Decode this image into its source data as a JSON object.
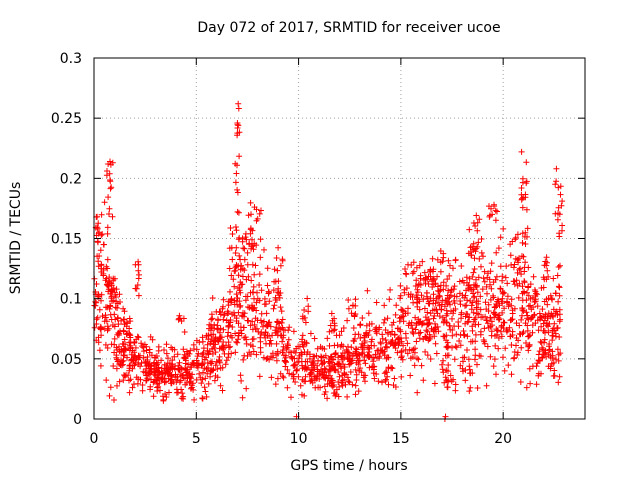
{
  "chart_data": {
    "type": "scatter",
    "title": "Day 072 of 2017, SRMTID for receiver ucoe",
    "xlabel": "GPS time / hours",
    "ylabel": "SRMTID / TECUs",
    "xlim": [
      0,
      24
    ],
    "ylim": [
      0,
      0.3
    ],
    "xticks": [
      0,
      5,
      10,
      15,
      20
    ],
    "xtick_labels": [
      "0",
      "5",
      "10",
      "15",
      "20"
    ],
    "yticks": [
      0,
      0.05,
      0.1,
      0.15,
      0.2,
      0.25,
      0.3
    ],
    "ytick_labels": [
      "0",
      "0.05",
      "0.1",
      "0.15",
      "0.2",
      "0.25",
      "0.3"
    ],
    "grid": true,
    "marker": "+",
    "marker_color": "#ff0000",
    "seed": 72,
    "baseline_profile": [
      [
        0.0,
        0.1
      ],
      [
        0.5,
        0.095
      ],
      [
        1.0,
        0.075
      ],
      [
        1.5,
        0.06
      ],
      [
        2.0,
        0.05
      ],
      [
        3.0,
        0.04
      ],
      [
        4.0,
        0.038
      ],
      [
        5.0,
        0.042
      ],
      [
        6.0,
        0.055
      ],
      [
        6.5,
        0.07
      ],
      [
        7.0,
        0.085
      ],
      [
        7.5,
        0.09
      ],
      [
        8.0,
        0.085
      ],
      [
        8.5,
        0.075
      ],
      [
        9.0,
        0.065
      ],
      [
        9.5,
        0.055
      ],
      [
        10.0,
        0.045
      ],
      [
        11.0,
        0.04
      ],
      [
        12.0,
        0.045
      ],
      [
        13.0,
        0.055
      ],
      [
        14.0,
        0.055
      ],
      [
        15.0,
        0.07
      ],
      [
        16.0,
        0.085
      ],
      [
        17.0,
        0.09
      ],
      [
        18.0,
        0.085
      ],
      [
        19.0,
        0.09
      ],
      [
        20.0,
        0.09
      ],
      [
        21.0,
        0.09
      ],
      [
        22.0,
        0.07
      ],
      [
        22.8,
        0.08
      ]
    ],
    "bursts": [
      {
        "x": [
          0.0,
          0.45
        ],
        "y": [
          0.14,
          0.17
        ],
        "n": 14
      },
      {
        "x": [
          0.35,
          0.75
        ],
        "y": [
          0.11,
          0.13
        ],
        "n": 12
      },
      {
        "x": [
          0.6,
          0.95
        ],
        "y": [
          0.15,
          0.215
        ],
        "n": 16
      },
      {
        "x": [
          0.8,
          1.05
        ],
        "y": [
          0.095,
          0.12
        ],
        "n": 8
      },
      {
        "x": [
          2.0,
          2.25
        ],
        "y": [
          0.1,
          0.135
        ],
        "n": 10
      },
      {
        "x": [
          4.1,
          4.4
        ],
        "y": [
          0.065,
          0.09
        ],
        "n": 6
      },
      {
        "x": [
          5.7,
          6.2
        ],
        "y": [
          0.06,
          0.1
        ],
        "n": 14
      },
      {
        "x": [
          6.6,
          7.6
        ],
        "y": [
          0.12,
          0.16
        ],
        "n": 30
      },
      {
        "x": [
          6.9,
          7.2
        ],
        "y": [
          0.17,
          0.24
        ],
        "n": 10
      },
      {
        "x": [
          7.0,
          7.15
        ],
        "y": [
          0.235,
          0.262
        ],
        "n": 6
      },
      {
        "x": [
          7.5,
          8.2
        ],
        "y": [
          0.14,
          0.18
        ],
        "n": 22
      },
      {
        "x": [
          8.8,
          9.3
        ],
        "y": [
          0.1,
          0.15
        ],
        "n": 14
      },
      {
        "x": [
          9.2,
          9.5
        ],
        "y": [
          0.05,
          0.065
        ],
        "n": 6
      },
      {
        "x": [
          10.2,
          10.5
        ],
        "y": [
          0.08,
          0.105
        ],
        "n": 8
      },
      {
        "x": [
          11.5,
          11.8
        ],
        "y": [
          0.07,
          0.09
        ],
        "n": 8
      },
      {
        "x": [
          12.4,
          12.8
        ],
        "y": [
          0.085,
          0.1
        ],
        "n": 10
      },
      {
        "x": [
          15.2,
          16.1
        ],
        "y": [
          0.1,
          0.13
        ],
        "n": 16
      },
      {
        "x": [
          16.4,
          17.2
        ],
        "y": [
          0.105,
          0.14
        ],
        "n": 18
      },
      {
        "x": [
          18.1,
          18.6
        ],
        "y": [
          0.1,
          0.12
        ],
        "n": 10
      },
      {
        "x": [
          18.3,
          19.2
        ],
        "y": [
          0.13,
          0.17
        ],
        "n": 22
      },
      {
        "x": [
          19.3,
          19.7
        ],
        "y": [
          0.165,
          0.18
        ],
        "n": 10
      },
      {
        "x": [
          20.3,
          21.4
        ],
        "y": [
          0.12,
          0.16
        ],
        "n": 24
      },
      {
        "x": [
          20.8,
          21.2
        ],
        "y": [
          0.17,
          0.215
        ],
        "n": 14
      },
      {
        "x": [
          21.8,
          22.2
        ],
        "y": [
          0.115,
          0.135
        ],
        "n": 10
      },
      {
        "x": [
          22.5,
          22.9
        ],
        "y": [
          0.15,
          0.2
        ],
        "n": 16
      }
    ],
    "dips": [
      {
        "x": [
          17.0,
          17.7
        ],
        "y": [
          0.025,
          0.05
        ],
        "n": 14
      },
      {
        "x": [
          18.0,
          18.8
        ],
        "y": [
          0.025,
          0.055
        ],
        "n": 10
      },
      {
        "x": [
          21.6,
          22.5
        ],
        "y": [
          0.035,
          0.06
        ],
        "n": 14
      }
    ],
    "outliers": [
      [
        7.05,
        0.262
      ],
      [
        7.08,
        0.258
      ],
      [
        20.9,
        0.222
      ],
      [
        22.6,
        0.208
      ],
      [
        0.78,
        0.214
      ],
      [
        9.9,
        0.002
      ],
      [
        17.15,
        0.0
      ],
      [
        17.18,
        0.002
      ]
    ],
    "n_base_points": 1900
  }
}
